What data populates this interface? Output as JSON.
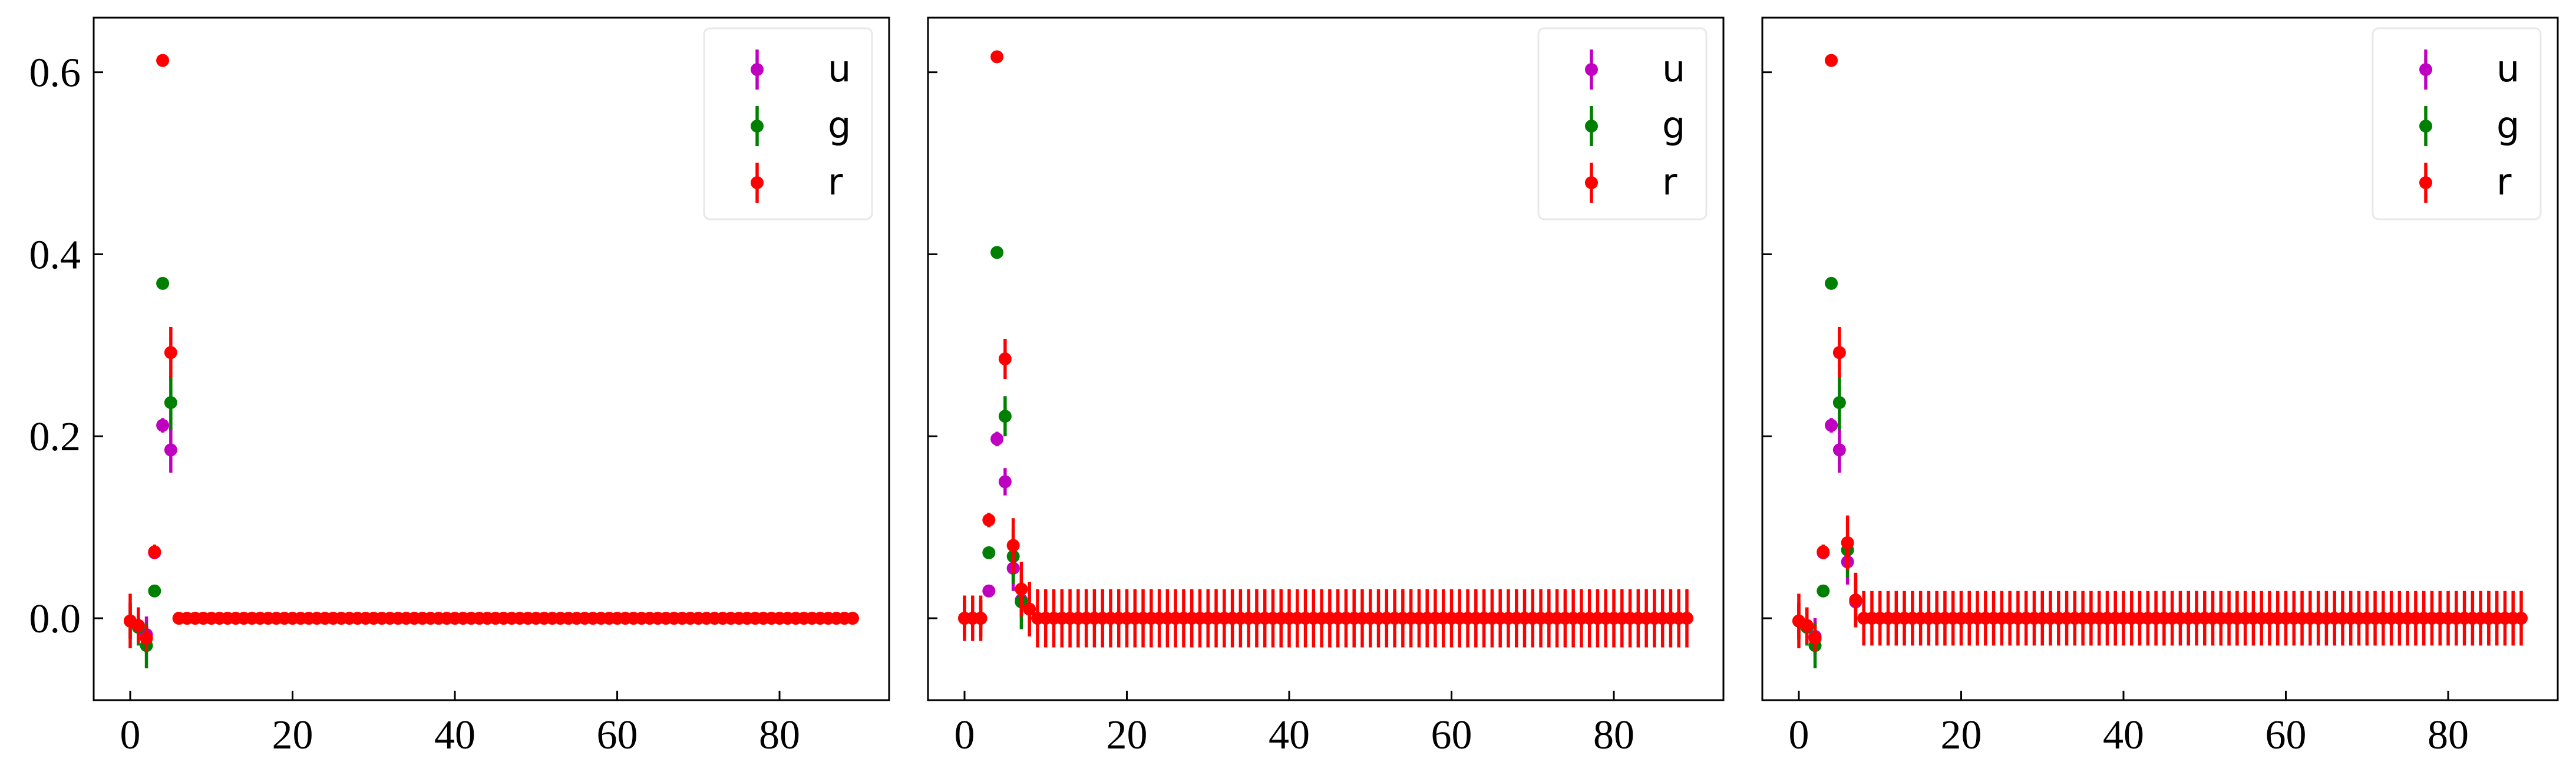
{
  "figure": {
    "colors": {
      "u": "#c000c0",
      "g": "#008000",
      "r": "#ff0000",
      "frame": "#000000",
      "legend_frame": "#e8e8e8"
    }
  },
  "chart_data": [
    {
      "type": "scatter",
      "title": "",
      "xlabel": "",
      "ylabel": "",
      "xlim": [
        -4.5,
        93.5
      ],
      "ylim": [
        -0.09,
        0.66
      ],
      "xticks": [
        0,
        20,
        40,
        60,
        80
      ],
      "xtick_labels": [
        "0",
        "20",
        "40",
        "60",
        "80"
      ],
      "yticks": [
        0.0,
        0.2,
        0.4,
        0.6
      ],
      "ytick_labels": [
        "0.0",
        "0.2",
        "0.4",
        "0.6"
      ],
      "show_ytick_labels": true,
      "grid": false,
      "legend": {
        "position": "top-right",
        "entries": [
          "u",
          "g",
          "r"
        ]
      },
      "series": [
        {
          "name": "u",
          "color": "#c000c0",
          "points": [
            [
              0,
              -0.003,
              0.02
            ],
            [
              1,
              -0.008,
              0.02
            ],
            [
              2,
              -0.018,
              0.02
            ],
            [
              3,
              0.072,
              0.006
            ],
            [
              4,
              0.212,
              0.008
            ],
            [
              5,
              0.185,
              0.025
            ]
          ],
          "flat_tail": null
        },
        {
          "name": "g",
          "color": "#008000",
          "points": [
            [
              0,
              -0.003,
              0.02
            ],
            [
              1,
              -0.01,
              0.02
            ],
            [
              2,
              -0.03,
              0.025
            ],
            [
              3,
              0.03,
              0.005
            ],
            [
              4,
              0.368,
              0.006
            ],
            [
              5,
              0.237,
              0.03
            ]
          ],
          "flat_tail": null
        },
        {
          "name": "r",
          "color": "#ff0000",
          "points": [
            [
              0,
              -0.003,
              0.03
            ],
            [
              1,
              -0.008,
              0.02
            ],
            [
              2,
              -0.022,
              0.015
            ],
            [
              3,
              0.073,
              0.008
            ],
            [
              4,
              0.613,
              0.006
            ],
            [
              5,
              0.292,
              0.028
            ]
          ],
          "flat_tail": {
            "from": 6,
            "to": 89,
            "y": 0.0,
            "err": 0.003
          }
        }
      ]
    },
    {
      "type": "scatter",
      "title": "",
      "xlabel": "",
      "ylabel": "",
      "xlim": [
        -4.5,
        93.5
      ],
      "ylim": [
        -0.09,
        0.66
      ],
      "xticks": [
        0,
        20,
        40,
        60,
        80
      ],
      "xtick_labels": [
        "0",
        "20",
        "40",
        "60",
        "80"
      ],
      "yticks": [
        0.0,
        0.2,
        0.4,
        0.6
      ],
      "ytick_labels": [
        "0.0",
        "0.2",
        "0.4",
        "0.6"
      ],
      "show_ytick_labels": false,
      "grid": false,
      "legend": {
        "position": "top-right",
        "entries": [
          "u",
          "g",
          "r"
        ]
      },
      "series": [
        {
          "name": "u",
          "color": "#c000c0",
          "points": [
            [
              0,
              0.0,
              0.02
            ],
            [
              1,
              0.0,
              0.02
            ],
            [
              2,
              0.0,
              0.02
            ],
            [
              3,
              0.03,
              0.005
            ],
            [
              4,
              0.197,
              0.008
            ],
            [
              5,
              0.15,
              0.015
            ],
            [
              6,
              0.055,
              0.025
            ],
            [
              7,
              0.02,
              0.02
            ]
          ],
          "flat_tail": null
        },
        {
          "name": "g",
          "color": "#008000",
          "points": [
            [
              0,
              0.0,
              0.02
            ],
            [
              1,
              0.0,
              0.02
            ],
            [
              2,
              0.0,
              0.02
            ],
            [
              3,
              0.072,
              0.005
            ],
            [
              4,
              0.402,
              0.004
            ],
            [
              5,
              0.222,
              0.022
            ],
            [
              6,
              0.068,
              0.03
            ],
            [
              7,
              0.018,
              0.03
            ]
          ],
          "flat_tail": null
        },
        {
          "name": "r",
          "color": "#ff0000",
          "points": [
            [
              0,
              0.0,
              0.025
            ],
            [
              1,
              0.0,
              0.025
            ],
            [
              2,
              0.0,
              0.025
            ],
            [
              3,
              0.108,
              0.008
            ],
            [
              4,
              0.617,
              0.006
            ],
            [
              5,
              0.285,
              0.022
            ],
            [
              6,
              0.08,
              0.03
            ],
            [
              7,
              0.032,
              0.03
            ],
            [
              8,
              0.01,
              0.03
            ]
          ],
          "flat_tail": {
            "from": 9,
            "to": 89,
            "y": 0.0,
            "err": 0.032
          }
        }
      ]
    },
    {
      "type": "scatter",
      "title": "",
      "xlabel": "",
      "ylabel": "",
      "xlim": [
        -4.5,
        93.5
      ],
      "ylim": [
        -0.09,
        0.66
      ],
      "xticks": [
        0,
        20,
        40,
        60,
        80
      ],
      "xtick_labels": [
        "0",
        "20",
        "40",
        "60",
        "80"
      ],
      "yticks": [
        0.0,
        0.2,
        0.4,
        0.6
      ],
      "ytick_labels": [
        "0.0",
        "0.2",
        "0.4",
        "0.6"
      ],
      "show_ytick_labels": false,
      "grid": false,
      "legend": {
        "position": "top-right",
        "entries": [
          "u",
          "g",
          "r"
        ]
      },
      "series": [
        {
          "name": "u",
          "color": "#c000c0",
          "points": [
            [
              0,
              -0.003,
              0.02
            ],
            [
              1,
              -0.008,
              0.02
            ],
            [
              2,
              -0.02,
              0.02
            ],
            [
              3,
              0.072,
              0.006
            ],
            [
              4,
              0.212,
              0.008
            ],
            [
              5,
              0.185,
              0.025
            ],
            [
              6,
              0.062,
              0.025
            ],
            [
              7,
              0.018,
              0.025
            ]
          ],
          "flat_tail": null
        },
        {
          "name": "g",
          "color": "#008000",
          "points": [
            [
              0,
              -0.003,
              0.02
            ],
            [
              1,
              -0.01,
              0.02
            ],
            [
              2,
              -0.03,
              0.025
            ],
            [
              3,
              0.03,
              0.005
            ],
            [
              4,
              0.368,
              0.006
            ],
            [
              5,
              0.237,
              0.03
            ],
            [
              6,
              0.075,
              0.03
            ],
            [
              7,
              0.02,
              0.03
            ],
            [
              54,
              0.0,
              0.03
            ],
            [
              85,
              0.0,
              0.03
            ]
          ],
          "flat_tail": null
        },
        {
          "name": "r",
          "color": "#ff0000",
          "points": [
            [
              0,
              -0.003,
              0.03
            ],
            [
              1,
              -0.008,
              0.02
            ],
            [
              2,
              -0.022,
              0.015
            ],
            [
              3,
              0.073,
              0.008
            ],
            [
              4,
              0.613,
              0.006
            ],
            [
              5,
              0.292,
              0.028
            ],
            [
              6,
              0.083,
              0.03
            ],
            [
              7,
              0.02,
              0.03
            ]
          ],
          "flat_tail": {
            "from": 8,
            "to": 89,
            "y": 0.0,
            "err": 0.03
          }
        }
      ]
    }
  ]
}
